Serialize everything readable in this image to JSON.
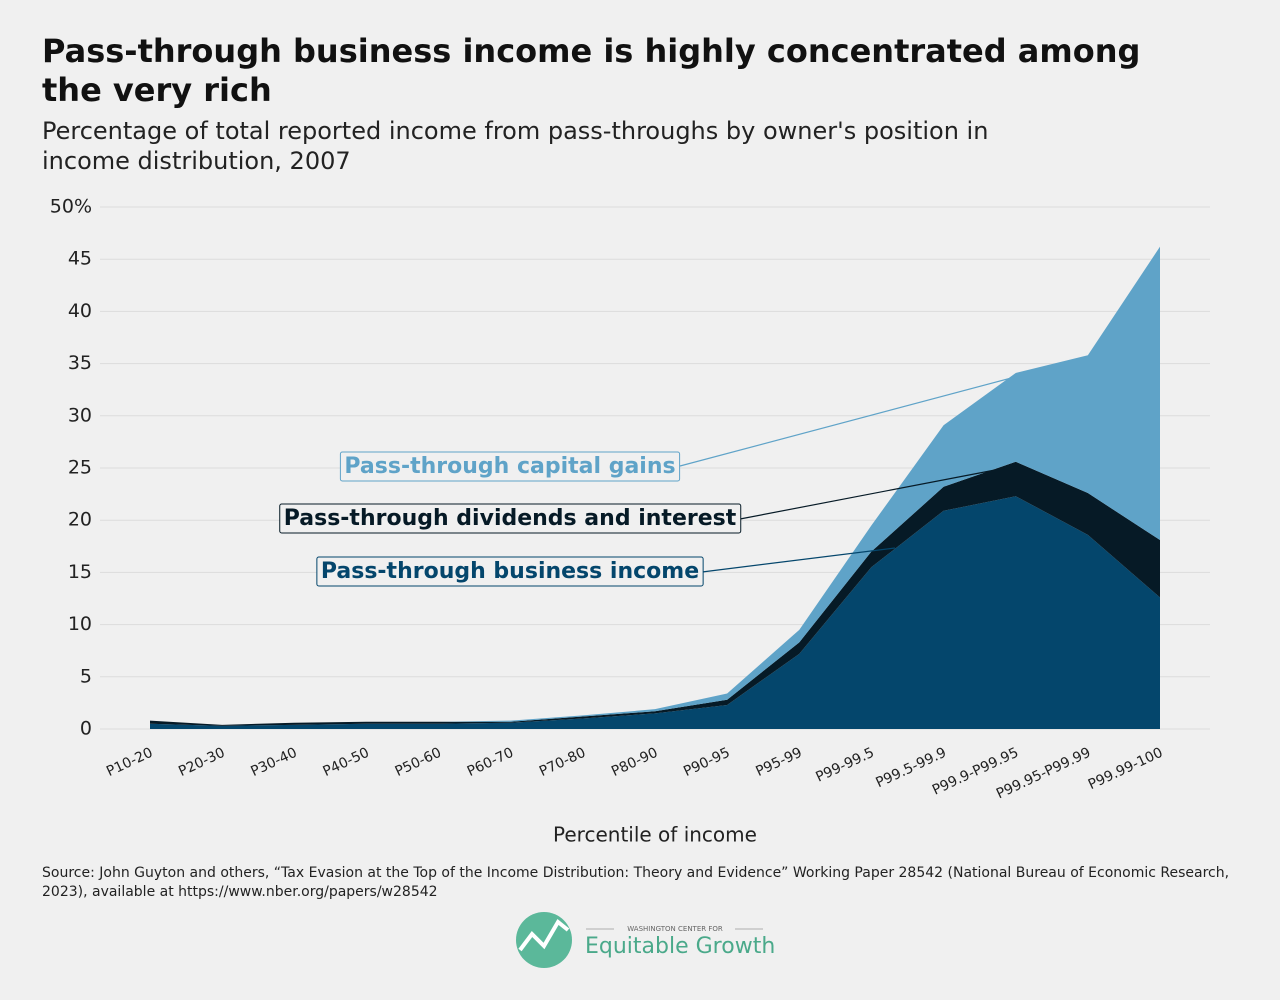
{
  "chart_data": {
    "type": "stacked-area",
    "title": "Pass-through business income is highly concentrated among the very rich",
    "subtitle": "Percentage of total reported income from pass-throughs by owner's position in income distribution, 2007",
    "x_label": "Percentile of income",
    "categories": [
      "P10-20",
      "P20-30",
      "P30-40",
      "P40-50",
      "P50-60",
      "P60-70",
      "P70-80",
      "P80-90",
      "P90-95",
      "P95-99",
      "P99-99.5",
      "P99.5-99.9",
      "P99.9-P99.95",
      "P99.95-P99.99",
      "P99.99-100"
    ],
    "series": [
      {
        "name": "Pass-through business income",
        "color": "#04466c",
        "values": [
          0.5,
          0.3,
          0.4,
          0.5,
          0.5,
          0.6,
          1.0,
          1.5,
          2.3,
          7.2,
          15.5,
          20.9,
          22.3,
          18.6,
          12.6
        ]
      },
      {
        "name": "Pass-through dividends and interest",
        "color": "#061a26",
        "values": [
          0.3,
          0.1,
          0.2,
          0.2,
          0.2,
          0.1,
          0.2,
          0.2,
          0.5,
          1.1,
          1.5,
          2.3,
          3.3,
          4.0,
          5.5
        ]
      },
      {
        "name": "Pass-through capital gains",
        "color": "#5fa3c8",
        "values": [
          0,
          0,
          0,
          0,
          0,
          0.1,
          0.1,
          0.2,
          0.6,
          1.2,
          2.5,
          5.9,
          8.5,
          13.2,
          28.1
        ]
      }
    ],
    "ylim": [
      0,
      50
    ],
    "yticks": [
      0,
      5,
      10,
      15,
      20,
      25,
      30,
      35,
      40,
      45,
      {
        "value": 50,
        "label": "50%"
      }
    ],
    "grid": true,
    "source": "Source: John Guyton and others, “Tax Evasion at the Top of the Income Distribution: Theory and Evidence” Working Paper 28542 (National Bureau of Economic Research, 2023), available at https://www.nber.org/papers/w28542",
    "brand": [
      "WASHINGTON CENTER FOR",
      "Equitable Growth"
    ]
  }
}
